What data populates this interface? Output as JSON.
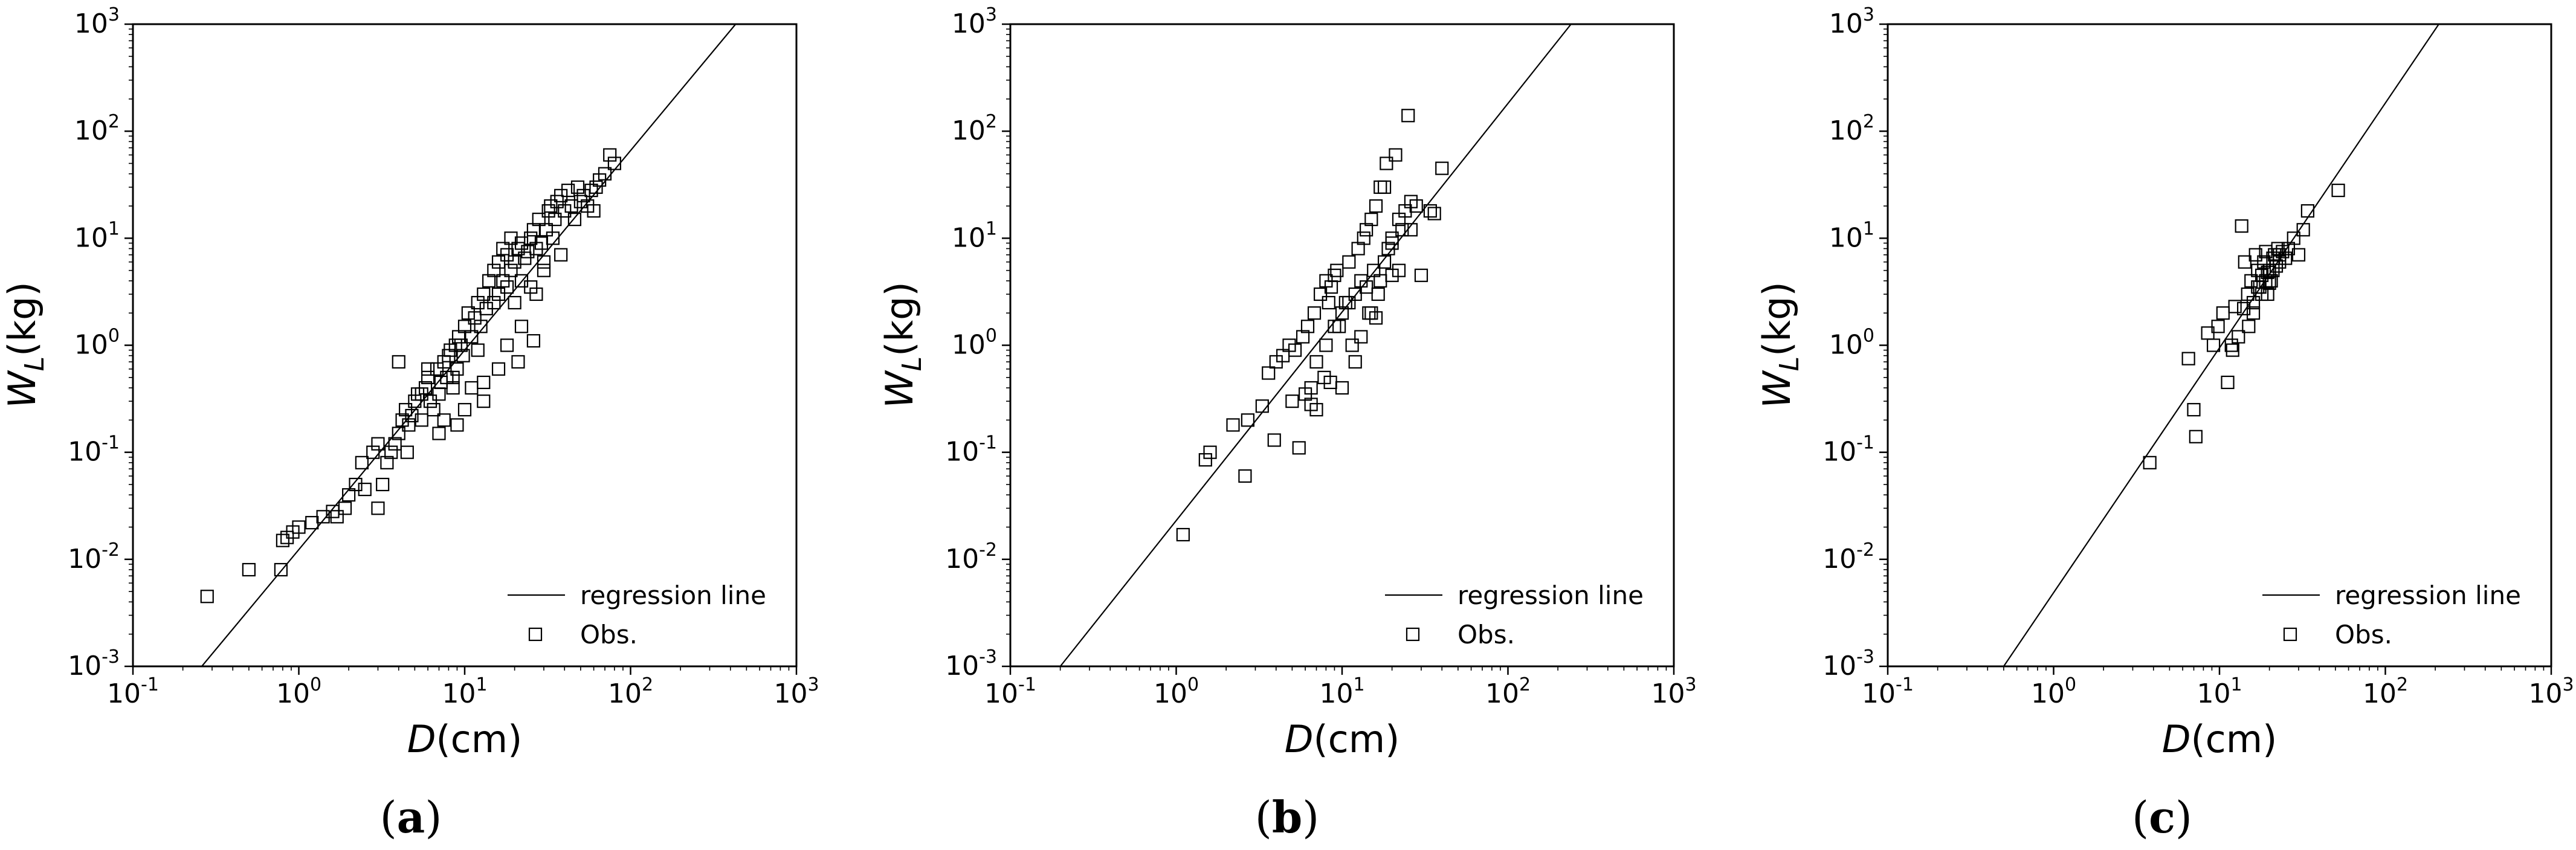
{
  "figure": {
    "colors": {
      "axis": "#000000",
      "line": "#000000",
      "marker": "#000000",
      "background": "#ffffff"
    }
  },
  "chart_data": [
    {
      "type": "scatter",
      "panel_label": "(a)",
      "panel_letter": "a",
      "xlabel": "D(cm)",
      "ylabel": "W_L(kg)",
      "xscale": "log",
      "yscale": "log",
      "xlim": [
        0.1,
        1000
      ],
      "ylim": [
        0.001,
        1000
      ],
      "x_ticks": [
        "10^-1",
        "10^0",
        "10^1",
        "10^2",
        "10^3"
      ],
      "y_ticks": [
        "10^-3",
        "10^-2",
        "10^-1",
        "10^0",
        "10^1",
        "10^2",
        "10^3"
      ],
      "legend": {
        "position": "bottom-right",
        "entries": [
          "regression line",
          "Obs."
        ]
      },
      "regression_line": {
        "name": "regression line",
        "x": [
          0.26,
          430
        ],
        "y": [
          0.001,
          1000
        ]
      },
      "series": [
        {
          "name": "Obs.",
          "x": [
            0.28,
            0.5,
            0.78,
            0.8,
            0.85,
            0.92,
            1.0,
            1.2,
            1.4,
            1.6,
            1.7,
            1.9,
            2.0,
            2.2,
            2.4,
            2.8,
            3.0,
            3.0,
            3.2,
            3.4,
            3.6,
            3.8,
            4.0,
            4.2,
            4.4,
            4.6,
            4.8,
            5.0,
            5.2,
            5.5,
            5.8,
            6.0,
            6.2,
            6.5,
            6.8,
            7.0,
            7.2,
            7.5,
            7.8,
            8.0,
            8.2,
            8.5,
            8.8,
            9.0,
            9.2,
            9.5,
            9.8,
            10,
            10.5,
            11,
            11.5,
            12,
            12.5,
            13,
            13.5,
            14,
            15,
            15,
            16,
            16,
            17,
            17,
            18,
            18,
            19,
            19,
            20,
            20,
            21,
            22,
            22,
            23,
            24,
            25,
            26,
            27,
            28,
            29,
            30,
            31,
            32,
            33,
            34,
            35,
            36,
            38,
            40,
            42,
            44,
            46,
            48,
            50,
            52,
            55,
            58,
            60,
            62,
            65,
            70,
            75,
            80,
            4.0,
            6.0,
            4.5,
            7.0,
            10,
            13,
            12,
            18,
            22,
            26,
            30,
            9.0,
            8.5,
            11,
            16,
            21,
            27,
            38,
            5.5,
            7.5,
            13,
            25,
            2.5
          ],
          "y": [
            0.0045,
            0.008,
            0.008,
            0.015,
            0.016,
            0.018,
            0.02,
            0.022,
            0.025,
            0.028,
            0.025,
            0.03,
            0.04,
            0.05,
            0.08,
            0.1,
            0.12,
            0.03,
            0.05,
            0.08,
            0.1,
            0.12,
            0.15,
            0.2,
            0.25,
            0.18,
            0.22,
            0.3,
            0.35,
            0.2,
            0.4,
            0.5,
            0.3,
            0.25,
            0.6,
            0.35,
            0.45,
            0.7,
            0.5,
            0.8,
            0.9,
            0.4,
            1.0,
            0.6,
            1.2,
            1.0,
            0.8,
            1.5,
            2.0,
            1.2,
            1.8,
            2.5,
            1.5,
            3.0,
            2.2,
            4.0,
            5.0,
            2.5,
            6.0,
            3.0,
            8.0,
            4.0,
            7.0,
            3.5,
            10,
            5.0,
            6.0,
            2.5,
            8.0,
            9.0,
            4.0,
            6.5,
            7.5,
            10,
            12,
            8.0,
            15,
            9.0,
            5.0,
            12,
            18,
            20,
            10,
            15,
            22,
            25,
            18,
            28,
            20,
            15,
            30,
            22,
            25,
            20,
            28,
            18,
            30,
            35,
            40,
            60,
            50,
            0.7,
            0.6,
            0.1,
            0.15,
            0.25,
            0.3,
            0.9,
            1.0,
            1.5,
            1.1,
            6.0,
            0.18,
            0.5,
            0.4,
            0.6,
            0.7,
            3.0,
            7.0,
            0.35,
            0.2,
            0.45,
            3.5,
            0.045
          ]
        }
      ]
    },
    {
      "type": "scatter",
      "panel_label": "(b)",
      "panel_letter": "b",
      "xlabel": "D(cm)",
      "ylabel": "W_L(kg)",
      "xscale": "log",
      "yscale": "log",
      "xlim": [
        0.1,
        1000
      ],
      "ylim": [
        0.001,
        1000
      ],
      "x_ticks": [
        "10^-1",
        "10^0",
        "10^1",
        "10^2",
        "10^3"
      ],
      "y_ticks": [
        "10^-3",
        "10^-2",
        "10^-1",
        "10^0",
        "10^1",
        "10^2",
        "10^3"
      ],
      "legend": {
        "position": "bottom-right",
        "entries": [
          "regression line",
          "Obs."
        ]
      },
      "regression_line": {
        "name": "regression line",
        "x": [
          0.2,
          240
        ],
        "y": [
          0.001,
          1000
        ]
      },
      "series": [
        {
          "name": "Obs.",
          "x": [
            1.1,
            1.5,
            1.6,
            2.2,
            2.6,
            2.7,
            3.3,
            3.6,
            3.9,
            4.0,
            4.4,
            4.8,
            5.2,
            5.5,
            5.8,
            6.0,
            6.2,
            6.5,
            6.8,
            7.0,
            7.4,
            7.8,
            8.0,
            8.3,
            8.6,
            9.0,
            9.3,
            9.6,
            10,
            10.5,
            11,
            11.5,
            12,
            12.5,
            13,
            13.5,
            14,
            14.5,
            15,
            15.5,
            16,
            16.5,
            17,
            18,
            18.5,
            19,
            20,
            20,
            21,
            22,
            23,
            24,
            25,
            26,
            28,
            30,
            34,
            36,
            40,
            6.5,
            8.5,
            12,
            15,
            18,
            22,
            7.0,
            10,
            13,
            16,
            20,
            26,
            9.0,
            11,
            14,
            17,
            5.0,
            8.0
          ],
          "y": [
            0.017,
            0.085,
            0.1,
            0.18,
            0.06,
            0.2,
            0.27,
            0.55,
            0.13,
            0.7,
            0.8,
            1.0,
            0.9,
            0.11,
            1.2,
            0.35,
            1.5,
            0.4,
            2.0,
            0.25,
            3.0,
            0.5,
            4.0,
            2.5,
            3.5,
            4.5,
            5.0,
            1.5,
            2.0,
            2.5,
            6.0,
            1.0,
            3.0,
            8.0,
            4.0,
            10,
            12,
            2.0,
            15,
            5.0,
            20,
            3.0,
            30,
            6.0,
            50,
            8.0,
            10,
            4.5,
            60,
            15,
            12,
            18,
            140,
            22,
            20,
            4.5,
            18,
            17,
            45,
            0.28,
            0.45,
            0.7,
            2.0,
            30,
            5.0,
            0.7,
            0.4,
            1.2,
            1.8,
            9.0,
            12,
            1.5,
            2.5,
            3.5,
            4.0,
            0.3,
            1.0
          ]
        }
      ]
    },
    {
      "type": "scatter",
      "panel_label": "(c)",
      "panel_letter": "c",
      "xlabel": "D(cm)",
      "ylabel": "W_L(kg)",
      "xscale": "log",
      "yscale": "log",
      "xlim": [
        0.1,
        1000
      ],
      "ylim": [
        0.001,
        1000
      ],
      "x_ticks": [
        "10^-1",
        "10^0",
        "10^1",
        "10^2",
        "10^3"
      ],
      "y_ticks": [
        "10^-3",
        "10^-2",
        "10^-1",
        "10^0",
        "10^1",
        "10^2",
        "10^3"
      ],
      "legend": {
        "position": "bottom-right",
        "entries": [
          "regression line",
          "Obs."
        ]
      },
      "regression_line": {
        "name": "regression line",
        "x": [
          0.5,
          210
        ],
        "y": [
          0.001,
          1000
        ]
      },
      "series": [
        {
          "name": "Obs.",
          "x": [
            3.8,
            6.5,
            7.0,
            7.2,
            8.5,
            9.2,
            9.8,
            10.5,
            11.2,
            11.8,
            12.4,
            13.0,
            13.6,
            14.2,
            14.8,
            15.5,
            16.0,
            16.5,
            17.0,
            17.5,
            18.0,
            18.5,
            19.0,
            19.5,
            20.0,
            20.5,
            21.0,
            21.5,
            22.0,
            22.5,
            23.0,
            24.0,
            25.0,
            26.0,
            28.0,
            30.0,
            32.0,
            34.0,
            52.0,
            12.0,
            14.0,
            17.0,
            19.0,
            21.0,
            23.0,
            15.0,
            18.0,
            20.0,
            16.0,
            19.5
          ],
          "y": [
            0.08,
            0.75,
            0.25,
            0.14,
            1.3,
            1.0,
            1.5,
            2.0,
            0.45,
            1.0,
            2.3,
            1.2,
            13,
            6.0,
            3.0,
            4.0,
            2.5,
            7.0,
            5.0,
            3.5,
            4.5,
            6.0,
            7.5,
            3.0,
            5.0,
            4.0,
            6.5,
            7.0,
            5.5,
            8.0,
            7.0,
            7.5,
            6.5,
            8.0,
            10,
            7.0,
            12,
            18,
            28,
            0.9,
            2.2,
            3.5,
            4.0,
            5.0,
            6.0,
            1.5,
            3.0,
            3.8,
            2.0,
            4.8
          ]
        }
      ]
    }
  ]
}
